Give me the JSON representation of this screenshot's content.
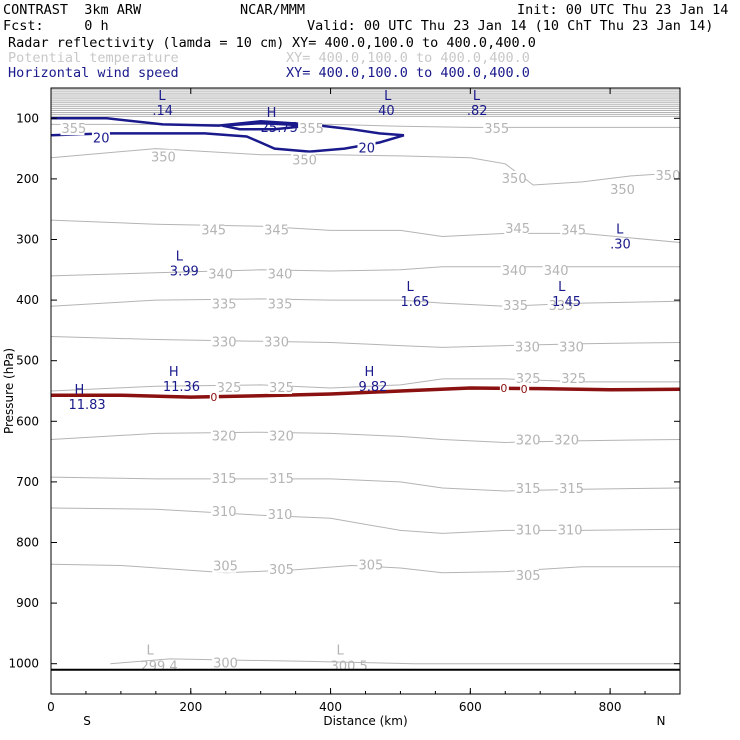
{
  "header": {
    "model": "CONTRAST  3km ARW",
    "org": "NCAR/MMM",
    "init": "Init: 00 UTC Thu 23 Jan 14",
    "fcst": "Fcst:     0 h",
    "valid": "Valid: 00 UTC Thu 23 Jan 14 (10 ChT Thu 23 Jan 14)",
    "fields": [
      {
        "name": "Radar reflectivity (lamda = 10 cm)",
        "xy": "XY= 400.0,100.0 to 400.0,400.0",
        "color": "#000000"
      },
      {
        "name": "Potential temperature",
        "xy": "XY= 400.0,100.0 to 400.0,400.0",
        "color": "#c8c8c8"
      },
      {
        "name": "Horizontal wind speed",
        "xy": "XY= 400.0,100.0 to 400.0,400.0",
        "color": "#1a1a8c"
      }
    ]
  },
  "chart_data": {
    "type": "line",
    "xlabel": "Distance (km)",
    "ylabel": "Pressure (hPa)",
    "xlim": [
      0,
      900
    ],
    "ylim": [
      1050,
      50
    ],
    "x_ticks": [
      0,
      200,
      400,
      600,
      800
    ],
    "y_ticks": [
      100,
      200,
      300,
      400,
      500,
      600,
      700,
      800,
      900,
      1000
    ],
    "x_end_labels": {
      "left": "S",
      "right": "N"
    },
    "colors": {
      "theta": "#b4b4b4",
      "wind": "#1a1a8c",
      "reflectivity": "#8b1010",
      "ground": "#000000"
    },
    "theta_isentropes": [
      {
        "value": 300,
        "points": [
          [
            85,
            1000
          ],
          [
            170,
            992
          ],
          [
            360,
            996
          ],
          [
            520,
            1000
          ],
          [
            900,
            1000
          ]
        ]
      },
      {
        "value": 305,
        "points": [
          [
            0,
            836
          ],
          [
            100,
            838
          ],
          [
            250,
            850
          ],
          [
            350,
            845
          ],
          [
            430,
            838
          ],
          [
            500,
            842
          ],
          [
            560,
            850
          ],
          [
            650,
            848
          ],
          [
            760,
            840
          ],
          [
            900,
            840
          ]
        ]
      },
      {
        "value": 310,
        "points": [
          [
            0,
            743
          ],
          [
            150,
            745
          ],
          [
            300,
            755
          ],
          [
            400,
            760
          ],
          [
            500,
            780
          ],
          [
            560,
            785
          ],
          [
            650,
            780
          ],
          [
            760,
            780
          ],
          [
            900,
            778
          ]
        ]
      },
      {
        "value": 315,
        "points": [
          [
            0,
            692
          ],
          [
            150,
            695
          ],
          [
            300,
            695
          ],
          [
            400,
            695
          ],
          [
            500,
            700
          ],
          [
            560,
            710
          ],
          [
            650,
            715
          ],
          [
            760,
            712
          ],
          [
            900,
            710
          ]
        ]
      },
      {
        "value": 320,
        "points": [
          [
            0,
            630
          ],
          [
            150,
            620
          ],
          [
            300,
            618
          ],
          [
            400,
            620
          ],
          [
            500,
            625
          ],
          [
            560,
            630
          ],
          [
            650,
            635
          ],
          [
            760,
            632
          ],
          [
            900,
            630
          ]
        ]
      },
      {
        "value": 325,
        "points": [
          [
            0,
            550
          ],
          [
            150,
            542
          ],
          [
            300,
            540
          ],
          [
            400,
            545
          ],
          [
            500,
            540
          ],
          [
            560,
            530
          ],
          [
            650,
            530
          ],
          [
            760,
            535
          ],
          [
            900,
            535
          ]
        ]
      },
      {
        "value": 330,
        "points": [
          [
            0,
            460
          ],
          [
            150,
            465
          ],
          [
            300,
            468
          ],
          [
            400,
            470
          ],
          [
            500,
            475
          ],
          [
            560,
            478
          ],
          [
            650,
            475
          ],
          [
            760,
            472
          ],
          [
            900,
            470
          ]
        ]
      },
      {
        "value": 335,
        "points": [
          [
            0,
            410
          ],
          [
            150,
            400
          ],
          [
            300,
            398
          ],
          [
            400,
            400
          ],
          [
            500,
            400
          ],
          [
            560,
            405
          ],
          [
            650,
            410
          ],
          [
            760,
            405
          ],
          [
            900,
            402
          ]
        ]
      },
      {
        "value": 340,
        "points": [
          [
            0,
            360
          ],
          [
            150,
            355
          ],
          [
            300,
            350
          ],
          [
            400,
            352
          ],
          [
            500,
            350
          ],
          [
            560,
            345
          ],
          [
            650,
            345
          ],
          [
            760,
            345
          ],
          [
            900,
            345
          ]
        ]
      },
      {
        "value": 345,
        "points": [
          [
            0,
            268
          ],
          [
            150,
            275
          ],
          [
            300,
            278
          ],
          [
            400,
            285
          ],
          [
            500,
            285
          ],
          [
            560,
            295
          ],
          [
            650,
            290
          ],
          [
            760,
            290
          ],
          [
            900,
            305
          ]
        ]
      },
      {
        "value": 350,
        "points": [
          [
            0,
            165
          ],
          [
            150,
            150
          ],
          [
            300,
            160
          ],
          [
            400,
            160
          ],
          [
            500,
            162
          ],
          [
            600,
            165
          ],
          [
            650,
            175
          ],
          [
            690,
            210
          ],
          [
            760,
            205
          ],
          [
            830,
            195
          ],
          [
            900,
            190
          ]
        ]
      },
      {
        "value": 355,
        "points": [
          [
            0,
            110
          ],
          [
            150,
            110
          ],
          [
            300,
            110
          ],
          [
            400,
            110
          ],
          [
            500,
            113
          ],
          [
            600,
            115
          ],
          [
            700,
            115
          ],
          [
            800,
            115
          ],
          [
            900,
            115
          ]
        ]
      }
    ],
    "theta_labels": [
      {
        "x": 15,
        "y": 118,
        "text": "355"
      },
      {
        "x": 355,
        "y": 118,
        "text": "355"
      },
      {
        "x": 620,
        "y": 118,
        "text": "355"
      },
      {
        "x": 143,
        "y": 165,
        "text": "350"
      },
      {
        "x": 345,
        "y": 170,
        "text": "350"
      },
      {
        "x": 645,
        "y": 200,
        "text": "350"
      },
      {
        "x": 800,
        "y": 218,
        "text": "350"
      },
      {
        "x": 865,
        "y": 195,
        "text": "350"
      },
      {
        "x": 215,
        "y": 285,
        "text": "345"
      },
      {
        "x": 305,
        "y": 285,
        "text": "345"
      },
      {
        "x": 650,
        "y": 283,
        "text": "345"
      },
      {
        "x": 730,
        "y": 285,
        "text": "345"
      },
      {
        "x": 225,
        "y": 358,
        "text": "340"
      },
      {
        "x": 310,
        "y": 358,
        "text": "340"
      },
      {
        "x": 645,
        "y": 352,
        "text": "340"
      },
      {
        "x": 705,
        "y": 352,
        "text": "340"
      },
      {
        "x": 230,
        "y": 407,
        "text": "335"
      },
      {
        "x": 310,
        "y": 407,
        "text": "335"
      },
      {
        "x": 647,
        "y": 410,
        "text": "335"
      },
      {
        "x": 712,
        "y": 410,
        "text": "335"
      },
      {
        "x": 230,
        "y": 470,
        "text": "330"
      },
      {
        "x": 305,
        "y": 470,
        "text": "330"
      },
      {
        "x": 664,
        "y": 478,
        "text": "330"
      },
      {
        "x": 727,
        "y": 478,
        "text": "330"
      },
      {
        "x": 237,
        "y": 545,
        "text": "325"
      },
      {
        "x": 312,
        "y": 545,
        "text": "325"
      },
      {
        "x": 665,
        "y": 530,
        "text": "325"
      },
      {
        "x": 730,
        "y": 530,
        "text": "325"
      },
      {
        "x": 230,
        "y": 625,
        "text": "320"
      },
      {
        "x": 312,
        "y": 625,
        "text": "320"
      },
      {
        "x": 665,
        "y": 632,
        "text": "320"
      },
      {
        "x": 720,
        "y": 632,
        "text": "320"
      },
      {
        "x": 230,
        "y": 695,
        "text": "315"
      },
      {
        "x": 312,
        "y": 695,
        "text": "315"
      },
      {
        "x": 665,
        "y": 712,
        "text": "315"
      },
      {
        "x": 727,
        "y": 712,
        "text": "315"
      },
      {
        "x": 230,
        "y": 750,
        "text": "310"
      },
      {
        "x": 310,
        "y": 755,
        "text": "310"
      },
      {
        "x": 665,
        "y": 780,
        "text": "310"
      },
      {
        "x": 725,
        "y": 780,
        "text": "310"
      },
      {
        "x": 232,
        "y": 840,
        "text": "305"
      },
      {
        "x": 312,
        "y": 845,
        "text": "305"
      },
      {
        "x": 440,
        "y": 838,
        "text": "305"
      },
      {
        "x": 665,
        "y": 855,
        "text": "305"
      },
      {
        "x": 232,
        "y": 1000,
        "text": "300"
      }
    ],
    "theta_extrema": [
      {
        "x": 128,
        "y": 988,
        "letter": "L",
        "value": "299.4"
      },
      {
        "x": 400,
        "y": 988,
        "letter": "L",
        "value": "300.5"
      }
    ],
    "wind_isotachs": [
      {
        "value": 20,
        "points": [
          [
            0,
            100
          ],
          [
            80,
            100
          ],
          [
            160,
            110
          ],
          [
            240,
            112
          ],
          [
            300,
            105
          ],
          [
            370,
            110
          ],
          [
            430,
            118
          ],
          [
            470,
            125
          ],
          [
            505,
            128
          ],
          [
            470,
            140
          ],
          [
            420,
            150
          ],
          [
            370,
            155
          ],
          [
            320,
            150
          ],
          [
            300,
            140
          ],
          [
            280,
            130
          ],
          [
            220,
            125
          ],
          [
            150,
            125
          ],
          [
            80,
            125
          ],
          [
            0,
            128
          ]
        ]
      },
      {
        "value": 20,
        "points": [
          [
            245,
            112
          ],
          [
            300,
            108
          ],
          [
            370,
            112
          ],
          [
            320,
            118
          ],
          [
            270,
            118
          ],
          [
            245,
            112
          ]
        ]
      }
    ],
    "wind_labels": [
      {
        "x": 60,
        "y": 133,
        "text": "20"
      },
      {
        "x": 440,
        "y": 150,
        "text": "20"
      }
    ],
    "wind_extrema": [
      {
        "x": 145,
        "y": 70,
        "letter": "L",
        "value": ".14"
      },
      {
        "x": 300,
        "y": 98,
        "letter": "H",
        "value": "25.75"
      },
      {
        "x": 468,
        "y": 70,
        "letter": "L",
        "value": "40"
      },
      {
        "x": 595,
        "y": 70,
        "letter": "L",
        "value": ".82"
      },
      {
        "x": 800,
        "y": 290,
        "letter": "L",
        "value": ".30"
      },
      {
        "x": 170,
        "y": 335,
        "letter": "L",
        "value": "3.99"
      },
      {
        "x": 500,
        "y": 385,
        "letter": "L",
        "value": "1.65"
      },
      {
        "x": 717,
        "y": 385,
        "letter": "L",
        "value": "1.45"
      },
      {
        "x": 25,
        "y": 555,
        "letter": "H",
        "value": "11.83"
      },
      {
        "x": 160,
        "y": 525,
        "letter": "H",
        "value": "11.36"
      },
      {
        "x": 440,
        "y": 525,
        "letter": "H",
        "value": "9.82"
      }
    ],
    "reflectivity": [
      {
        "value": 0,
        "points": [
          [
            0,
            557
          ],
          [
            100,
            557
          ],
          [
            200,
            560
          ],
          [
            300,
            558
          ],
          [
            400,
            555
          ],
          [
            500,
            550
          ],
          [
            600,
            545
          ],
          [
            700,
            546
          ],
          [
            800,
            548
          ],
          [
            900,
            547
          ]
        ]
      }
    ],
    "reflectivity_labels": [
      {
        "x": 233,
        "y": 560,
        "text": "0"
      },
      {
        "x": 648,
        "y": 545,
        "text": "0"
      },
      {
        "x": 677,
        "y": 547,
        "text": "0"
      }
    ],
    "ground_level": 1010
  }
}
